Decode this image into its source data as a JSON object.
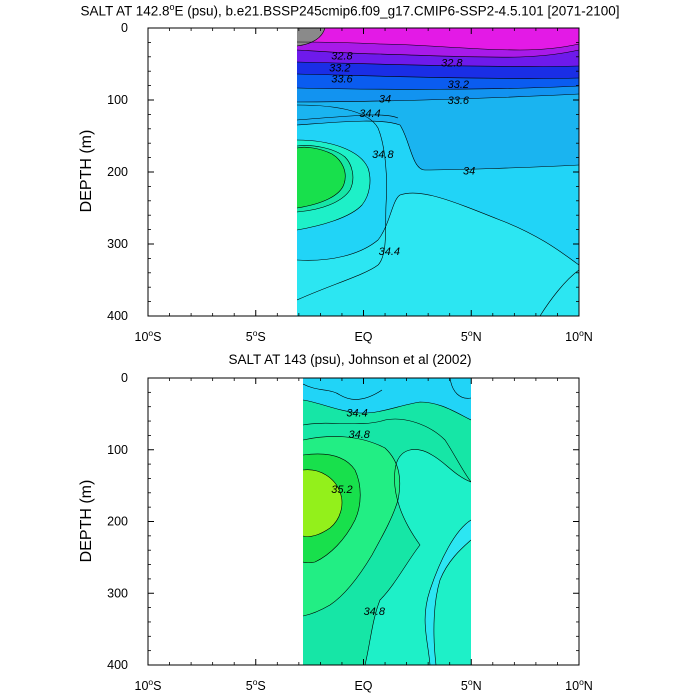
{
  "chart_data": [
    {
      "type": "contour",
      "title_prefix": "SALT AT 142.8",
      "title_deg": "o",
      "title_suffix": "E (psu), b.e21.BSSP245cmip6.f09_g17.CMIP6-SSP2-4.5.101 [2071-2100]",
      "ylabel": "DEPTH (m)",
      "xlim": [
        -10,
        10
      ],
      "ylim": [
        0,
        400
      ],
      "x_ticks": [
        {
          "v": -10,
          "label": "10",
          "sup": "o",
          "hemi": "S"
        },
        {
          "v": -5,
          "label": "5",
          "sup": "o",
          "hemi": "S"
        },
        {
          "v": 0,
          "label": "EQ",
          "sup": "",
          "hemi": ""
        },
        {
          "v": 5,
          "label": "5",
          "sup": "o",
          "hemi": "N"
        },
        {
          "v": 10,
          "label": "10",
          "sup": "o",
          "hemi": "N"
        }
      ],
      "y_ticks": [
        0,
        100,
        200,
        300,
        400
      ],
      "contour_labels": [
        {
          "lon": -1.0,
          "depth": 38,
          "text": "32.8"
        },
        {
          "lon": -1.1,
          "depth": 55,
          "text": "33.2"
        },
        {
          "lon": -1.0,
          "depth": 70,
          "text": "33.6"
        },
        {
          "lon": 1.0,
          "depth": 98,
          "text": "34"
        },
        {
          "lon": 0.3,
          "depth": 118,
          "text": "34.4"
        },
        {
          "lon": 0.9,
          "depth": 175,
          "text": "34.8"
        },
        {
          "lon": 4.9,
          "depth": 198,
          "text": "34"
        },
        {
          "lon": 1.2,
          "depth": 310,
          "text": "34.4"
        },
        {
          "lon": 4.1,
          "depth": 48,
          "text": "32.8"
        },
        {
          "lon": 4.4,
          "depth": 78,
          "text": "33.2"
        },
        {
          "lon": 4.4,
          "depth": 100,
          "text": "33.6"
        }
      ]
    },
    {
      "type": "contour",
      "title": "SALT AT 143 (psu), Johnson et al (2002)",
      "ylabel": "DEPTH (m)",
      "xlim": [
        -10,
        10
      ],
      "ylim": [
        0,
        400
      ],
      "x_ticks": [
        {
          "v": -10,
          "label": "10",
          "sup": "o",
          "hemi": "S"
        },
        {
          "v": -5,
          "label": "5",
          "sup": "o",
          "hemi": "S"
        },
        {
          "v": 0,
          "label": "EQ",
          "sup": "",
          "hemi": ""
        },
        {
          "v": 5,
          "label": "5",
          "sup": "o",
          "hemi": "N"
        },
        {
          "v": 10,
          "label": "10",
          "sup": "o",
          "hemi": "N"
        }
      ],
      "y_ticks": [
        0,
        100,
        200,
        300,
        400
      ],
      "contour_labels": [
        {
          "lon": -0.3,
          "depth": 48,
          "text": "34.4"
        },
        {
          "lon": -0.2,
          "depth": 78,
          "text": "34.8"
        },
        {
          "lon": -1.0,
          "depth": 155,
          "text": "35.2"
        },
        {
          "lon": 0.5,
          "depth": 325,
          "text": "34.8"
        }
      ]
    }
  ],
  "colors": {
    "gray": "#8a8a8a",
    "magenta": "#e31ae6",
    "violet": "#a81ae8",
    "purple": "#6e1aeb",
    "blue_dark": "#1a2ee6",
    "blue": "#0a5cf0",
    "blue_mid": "#1293f0",
    "sky": "#1ab4f0",
    "cyan": "#21d4f7",
    "cyan_light": "#2ce6f2",
    "aqua": "#1ef0c8",
    "teal": "#16e6a6",
    "green_light": "#22ee84",
    "green": "#18e04c",
    "lime": "#93f01b"
  }
}
